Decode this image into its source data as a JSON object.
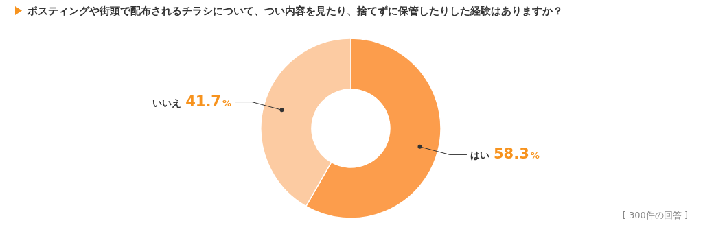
{
  "chart_data": {
    "type": "donut",
    "title": "ポスティングや街頭で配布されるチラシについて、つい内容を見たり、捨てずに保管したりした経験はありますか？",
    "categories": [
      "はい",
      "いいえ"
    ],
    "values": [
      58.3,
      41.7
    ],
    "value_labels": [
      "58.3%",
      "41.7%"
    ],
    "colors": [
      "#fc9d4c",
      "#fccba2"
    ],
    "annotations": [
      "[ 300件の回答 ]"
    ]
  }
}
